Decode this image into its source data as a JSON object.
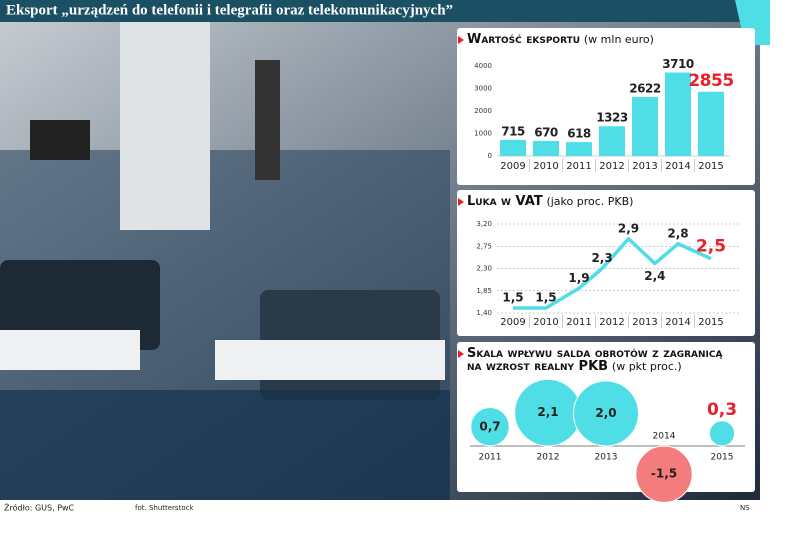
{
  "title": "Eksport „urządzeń do telefonii i telegrafii oraz telekomunikacyjnych”",
  "source": "Źródło: GUS, PwC",
  "photo_credit": "fot. Shutterstock",
  "signature": "NS",
  "chart_data": [
    {
      "type": "bar",
      "title": "Wartość eksportu",
      "subtitle": "(w mln euro)",
      "categories": [
        "2009",
        "2010",
        "2011",
        "2012",
        "2013",
        "2014",
        "2015"
      ],
      "values": [
        715,
        670,
        618,
        1323,
        2622,
        3710,
        2855
      ],
      "value_label_colors": [
        "#222222",
        "#222222",
        "#222222",
        "#222222",
        "#222222",
        "#222222",
        "#e8202a"
      ],
      "color": "#4fdde6",
      "ylim": [
        0,
        4000
      ],
      "yticks": [
        0,
        1000,
        2000,
        3000,
        4000
      ]
    },
    {
      "type": "line",
      "title": "Luka w VAT",
      "subtitle": "(jako proc. PKB)",
      "x": [
        2009,
        2010,
        2011,
        2011.7,
        2012.5,
        2013.3,
        2014,
        2015
      ],
      "values": [
        1.5,
        1.5,
        1.9,
        2.3,
        2.9,
        2.4,
        2.8,
        2.5
      ],
      "value_labels": [
        "1,5",
        "1,5",
        "1,9",
        "2,3",
        "2,9",
        "2,4",
        "2,8",
        "2,5"
      ],
      "value_label_colors": [
        "#222222",
        "#222222",
        "#222222",
        "#222222",
        "#222222",
        "#222222",
        "#222222",
        "#e8202a"
      ],
      "color": "#4fdde6",
      "xlim": [
        2008.7,
        2015.3
      ],
      "xticks": [
        2009,
        2010,
        2011,
        2012,
        2013,
        2014,
        2015
      ],
      "ylim": [
        1.4,
        3.2
      ],
      "yticks": [
        {
          "value": 1.4,
          "label": "1,40"
        },
        {
          "value": 1.85,
          "label": "1,85"
        },
        {
          "value": 2.3,
          "label": "2,30"
        },
        {
          "value": 2.75,
          "label": "2,75"
        },
        {
          "value": 3.2,
          "label": "3,20"
        }
      ],
      "grid": true
    },
    {
      "type": "bubble",
      "title": "Skala wpływu salda obrotów z zagranicą na wzrost realny PKB",
      "subtitle": "(w pkt proc.)",
      "categories": [
        "2011",
        "2012",
        "2013",
        "2014",
        "2015"
      ],
      "values": [
        0.7,
        2.1,
        2.0,
        -1.5,
        0.3
      ],
      "value_labels": [
        "0,7",
        "2,1",
        "2,0",
        "-1,5",
        "0,3"
      ],
      "value_label_colors": [
        "#222222",
        "#222222",
        "#222222",
        "#222222",
        "#e8202a"
      ],
      "color": "#4fdde6",
      "negative_color": "#f47c7c"
    }
  ]
}
